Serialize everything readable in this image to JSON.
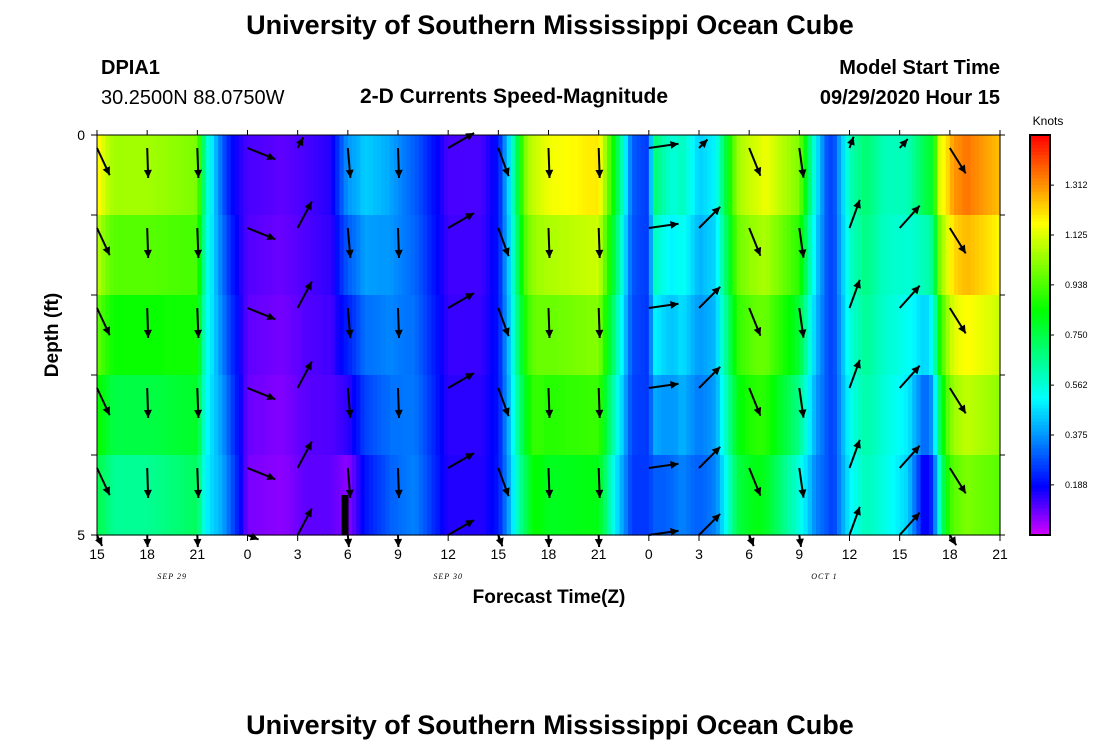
{
  "header": {
    "title_top": "University of Southern Mississippi Ocean Cube",
    "title_bottom": "University of Southern Mississippi Ocean Cube",
    "station": "DPIA1",
    "location": "30.2500N 88.0750W",
    "subtitle": "2-D Currents Speed-Magnitude",
    "model_label": "Model Start Time",
    "model_time": "09/29/2020 Hour 15"
  },
  "chart_data": {
    "type": "heatmap",
    "title": "2-D Currents Speed-Magnitude",
    "xlabel": "Forecast Time(Z)",
    "ylabel": "Depth (ft)",
    "x_hours_range": [
      15,
      69
    ],
    "x_ticks": [
      "15",
      "18",
      "21",
      "0",
      "3",
      "6",
      "9",
      "12",
      "15",
      "18",
      "21",
      "0",
      "3",
      "6",
      "9",
      "12",
      "15",
      "18",
      "21"
    ],
    "x_tick_hours": [
      15,
      18,
      21,
      24,
      27,
      30,
      33,
      36,
      39,
      42,
      45,
      48,
      51,
      54,
      57,
      60,
      63,
      66,
      69
    ],
    "date_labels": [
      {
        "label": "SEP 29",
        "hour": 19.5
      },
      {
        "label": "SEP 30",
        "hour": 36
      },
      {
        "label": "OCT 1",
        "hour": 58.5
      }
    ],
    "y_ticks": [
      "0",
      "5"
    ],
    "ylim": [
      0,
      5
    ],
    "colorbar": {
      "unit": "Knots",
      "ticks": [
        "1.312",
        "1.125",
        "0.938",
        "0.750",
        "0.562",
        "0.375",
        "0.188"
      ],
      "tick_values": [
        1.312,
        1.125,
        0.938,
        0.75,
        0.562,
        0.375,
        0.188
      ],
      "range": [
        0,
        1.5
      ]
    },
    "depth_bands": 5,
    "speed_profile": {
      "hours": [
        15,
        15.5,
        16,
        18,
        21,
        21.5,
        22.5,
        23,
        23.5,
        24,
        26,
        27.5,
        29,
        30,
        30.5,
        31,
        32.5,
        34,
        36,
        38,
        39,
        39.7,
        40.2,
        40.7,
        41.2,
        42,
        45,
        46,
        47,
        48,
        48.3,
        49,
        49.5,
        50,
        51,
        52,
        52.7,
        53.3,
        54,
        54.5,
        55,
        57,
        58,
        58.6,
        59,
        60,
        61,
        62,
        63.5,
        64.5,
        65,
        65.4,
        65.8,
        66.2,
        67,
        69
      ],
      "top": [
        1.2,
        1.1,
        1.05,
        1.05,
        1.0,
        0.6,
        0.3,
        0.2,
        0.15,
        0.12,
        0.1,
        0.12,
        0.15,
        0.38,
        0.4,
        0.45,
        0.4,
        0.3,
        0.12,
        0.12,
        0.2,
        0.5,
        0.8,
        1.05,
        1.1,
        1.15,
        1.2,
        0.8,
        0.3,
        0.25,
        0.7,
        0.6,
        0.55,
        0.6,
        0.45,
        0.5,
        0.8,
        1.05,
        1.1,
        1.12,
        1.15,
        1.0,
        0.5,
        0.3,
        0.25,
        0.6,
        0.7,
        0.6,
        0.6,
        0.75,
        0.8,
        1.15,
        1.2,
        1.3,
        1.35,
        1.25
      ],
      "bottom": [
        0.75,
        0.7,
        0.65,
        0.65,
        0.72,
        0.5,
        0.4,
        0.3,
        0.2,
        0.08,
        0.06,
        0.1,
        0.1,
        0.06,
        0.12,
        0.2,
        0.3,
        0.35,
        0.15,
        0.15,
        0.2,
        0.42,
        0.62,
        0.75,
        0.85,
        0.8,
        0.82,
        0.5,
        0.25,
        0.25,
        0.3,
        0.3,
        0.32,
        0.35,
        0.3,
        0.35,
        0.55,
        0.75,
        0.8,
        0.82,
        0.8,
        0.55,
        0.35,
        0.3,
        0.25,
        0.5,
        0.6,
        0.55,
        0.45,
        0.15,
        0.25,
        0.6,
        0.85,
        0.95,
        1.0,
        0.95
      ]
    },
    "vector_columns": [
      {
        "hour": 15,
        "dir_deg": 155
      },
      {
        "hour": 18,
        "dir_deg": 178
      },
      {
        "hour": 21,
        "dir_deg": 178
      },
      {
        "hour": 24,
        "dir_deg": 112
      },
      {
        "hour": 27,
        "dir_deg": 28
      },
      {
        "hour": 30,
        "dir_deg": 175
      },
      {
        "hour": 33,
        "dir_deg": 178
      },
      {
        "hour": 36,
        "dir_deg": 60
      },
      {
        "hour": 39,
        "dir_deg": 160
      },
      {
        "hour": 42,
        "dir_deg": 178
      },
      {
        "hour": 45,
        "dir_deg": 178
      },
      {
        "hour": 48,
        "dir_deg": 82
      },
      {
        "hour": 51,
        "dir_deg": 45
      },
      {
        "hour": 54,
        "dir_deg": 158
      },
      {
        "hour": 57,
        "dir_deg": 172
      },
      {
        "hour": 60,
        "dir_deg": 20
      },
      {
        "hour": 63,
        "dir_deg": 42
      },
      {
        "hour": 66,
        "dir_deg": 148
      }
    ]
  }
}
